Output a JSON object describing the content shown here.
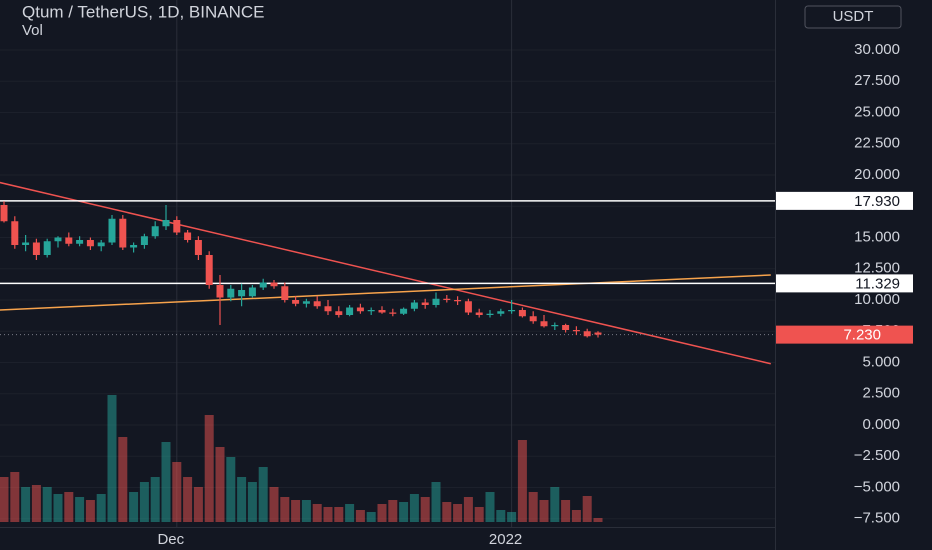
{
  "chart_data": {
    "type": "candlestick",
    "title": "Qtum / TetherUS, 1D, BINANCE",
    "volume_label": "Vol",
    "currency": "USDT",
    "categories": [
      null,
      null,
      null,
      null,
      null,
      null,
      null,
      null,
      null,
      null,
      null,
      null,
      null,
      null,
      null,
      null,
      "Dec",
      null,
      null,
      null,
      null,
      null,
      null,
      null,
      null,
      null,
      null,
      null,
      null,
      null,
      null,
      null,
      null,
      null,
      null,
      null,
      null,
      null,
      null,
      null,
      null,
      null,
      null,
      null,
      null,
      null,
      null,
      "2022",
      null,
      null,
      null,
      null,
      null,
      null,
      null,
      null
    ],
    "open": [
      17.6,
      16.3,
      14.4,
      14.6,
      13.6,
      14.7,
      15.0,
      14.5,
      14.8,
      14.3,
      14.6,
      16.5,
      14.2,
      14.4,
      15.1,
      15.9,
      16.4,
      15.4,
      14.8,
      13.6,
      11.2,
      10.2,
      10.3,
      10.3,
      11.0,
      11.4,
      11.1,
      10.0,
      9.7,
      9.9,
      9.5,
      9.1,
      8.8,
      9.4,
      9.1,
      9.2,
      9.0,
      8.9,
      9.3,
      9.8,
      9.6,
      10.1,
      10.0,
      9.9,
      9.0,
      8.8,
      8.9,
      9.1,
      9.2,
      8.7,
      8.3,
      7.9,
      8.0,
      7.6,
      7.5,
      7.4
    ],
    "high": [
      17.9,
      16.7,
      15.2,
      14.9,
      14.9,
      15.1,
      15.4,
      15.1,
      15.0,
      14.8,
      16.8,
      16.8,
      14.6,
      15.3,
      16.3,
      17.6,
      16.7,
      15.6,
      15.1,
      13.9,
      12.0,
      11.2,
      11.3,
      11.2,
      11.7,
      11.6,
      11.4,
      10.3,
      10.1,
      10.3,
      10.0,
      9.5,
      9.6,
      9.7,
      9.4,
      9.5,
      9.3,
      9.4,
      10.0,
      10.1,
      10.6,
      10.4,
      10.3,
      10.1,
      9.3,
      9.2,
      9.3,
      10.0,
      9.4,
      9.1,
      8.8,
      8.2,
      8.1,
      7.9,
      7.7,
      7.5
    ],
    "low": [
      16.2,
      14.1,
      13.9,
      13.2,
      13.4,
      14.2,
      14.3,
      14.3,
      14.0,
      13.9,
      14.4,
      14.0,
      13.8,
      14.1,
      14.9,
      15.6,
      15.2,
      14.6,
      13.2,
      10.9,
      8.0,
      9.9,
      9.5,
      10.2,
      10.8,
      10.9,
      9.8,
      9.5,
      9.4,
      9.3,
      8.8,
      8.6,
      8.7,
      8.9,
      8.8,
      8.9,
      8.7,
      8.8,
      9.1,
      9.3,
      9.4,
      9.8,
      9.6,
      8.8,
      8.6,
      8.6,
      8.7,
      8.9,
      8.6,
      8.1,
      7.8,
      7.6,
      7.4,
      7.2,
      7.0,
      7.0
    ],
    "close": [
      16.3,
      14.4,
      14.6,
      13.6,
      14.7,
      15.0,
      14.5,
      14.8,
      14.3,
      14.6,
      16.5,
      14.2,
      14.4,
      15.1,
      15.9,
      16.4,
      15.4,
      14.8,
      13.6,
      11.2,
      10.2,
      10.9,
      10.8,
      11.0,
      11.4,
      11.1,
      10.0,
      9.7,
      9.9,
      9.5,
      9.1,
      8.8,
      9.4,
      9.1,
      9.2,
      9.0,
      8.9,
      9.3,
      9.8,
      9.6,
      10.1,
      10.0,
      9.9,
      9.0,
      8.8,
      8.9,
      9.1,
      9.2,
      8.7,
      8.3,
      7.9,
      8.0,
      7.6,
      7.5,
      7.1,
      7.23
    ],
    "up_color": "#26a69a",
    "down_color": "#ef5350",
    "volume": [
      45,
      50,
      35,
      37,
      35,
      28,
      30,
      25,
      22,
      28,
      127,
      85,
      30,
      40,
      45,
      80,
      60,
      45,
      35,
      107,
      75,
      65,
      45,
      40,
      55,
      35,
      25,
      22,
      22,
      18,
      15,
      15,
      18,
      12,
      10,
      18,
      22,
      20,
      28,
      25,
      40,
      20,
      18,
      25,
      15,
      30,
      12,
      10,
      82,
      30,
      22,
      35,
      22,
      12,
      26,
      4
    ],
    "volume_lim": [
      0,
      135
    ],
    "ylim": [
      -8.16,
      34
    ],
    "yticks": [
      {
        "value": -7.5,
        "label": "−7.500"
      },
      {
        "value": -5,
        "label": "−5.000"
      },
      {
        "value": -2.5,
        "label": "−2.500"
      },
      {
        "value": 0,
        "label": "0.000"
      },
      {
        "value": 2.5,
        "label": "2.500"
      },
      {
        "value": 5,
        "label": "5.000"
      },
      {
        "value": 7.5,
        "label": "7.500"
      },
      {
        "value": 10,
        "label": "10.000"
      },
      {
        "value": 12.5,
        "label": "12.500"
      },
      {
        "value": 15,
        "label": "15.000"
      },
      {
        "value": 17.5,
        "label": "17.500"
      },
      {
        "value": 20,
        "label": "20.000"
      },
      {
        "value": 22.5,
        "label": "22.500"
      },
      {
        "value": 25,
        "label": "25.000"
      },
      {
        "value": 27.5,
        "label": "27.500"
      },
      {
        "value": 30,
        "label": "30.000"
      }
    ],
    "levels": [
      {
        "value": 17.93,
        "label": "17.930",
        "color": "#ffffff"
      },
      {
        "value": 11.329,
        "label": "11.329",
        "color": "#ffffff"
      }
    ],
    "last_price": {
      "value": 7.23,
      "label": "7.230",
      "color": "#ef5350"
    },
    "trendlines": [
      {
        "x": [
          -0.4,
          71
        ],
        "y": [
          19.4,
          4.9
        ],
        "color": "#ef5350"
      },
      {
        "x": [
          -0.4,
          71
        ],
        "y": [
          9.2,
          12.0
        ],
        "color": "#f7a34c"
      }
    ]
  }
}
